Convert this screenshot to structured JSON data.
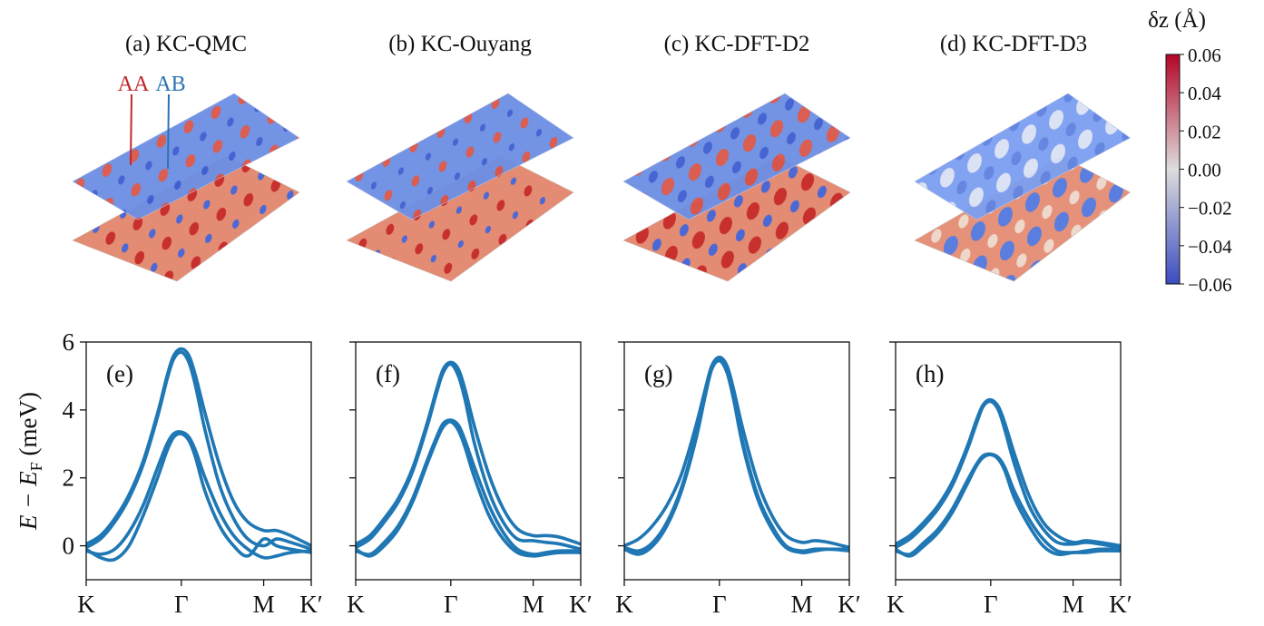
{
  "chart_data": [
    {
      "type": "surface",
      "title": "(a) KC-QMC",
      "annotations": [
        {
          "text": "AA",
          "color": "#c0282d"
        },
        {
          "text": "AB",
          "color": "#2b73b4"
        }
      ]
    },
    {
      "type": "surface",
      "title": "(b) KC-Ouyang"
    },
    {
      "type": "surface",
      "title": "(c) KC-DFT-D2"
    },
    {
      "type": "surface",
      "title": "(d) KC-DFT-D3"
    },
    {
      "type": "colorbar",
      "label": "δz (Å)",
      "lim": [
        -0.06,
        0.06
      ],
      "colors": [
        "#3b4cc0",
        "#dddddd",
        "#b40426"
      ],
      "ticks": [
        0.06,
        0.04,
        0.02,
        {
          "value": 0,
          "label": "0.00"
        },
        {
          "value": -0.02,
          "label": "−0.02"
        },
        {
          "value": -0.04,
          "label": "−0.04"
        },
        {
          "value": -0.06,
          "label": "−0.06"
        }
      ]
    },
    {
      "type": "line",
      "panel_label": "(e)",
      "ylabel": {
        "main": "E − E",
        "sub": "F",
        "unit": " (meV)"
      },
      "ytick_labels": true,
      "x": [
        0,
        0.15,
        0.3,
        0.45,
        0.6,
        0.75,
        0.85,
        0.92,
        1.0,
        1.08,
        1.15,
        1.25,
        1.4,
        1.55,
        1.7,
        1.866,
        2.0,
        2.15,
        2.366
      ],
      "xlim": [
        0,
        2.366
      ],
      "ylim": [
        -1,
        6
      ],
      "xticks": [
        {
          "value": 0,
          "label": "K"
        },
        {
          "value": 1,
          "label": "Γ"
        },
        {
          "value": 1.866,
          "label": "M"
        },
        {
          "value": 2.366,
          "label": "K′"
        }
      ],
      "yticks": [
        0,
        2,
        4,
        6
      ],
      "series": [
        {
          "color": "#1f77b4",
          "values": [
            0.05,
            0.3,
            0.8,
            1.5,
            2.5,
            3.9,
            5.0,
            5.6,
            5.8,
            5.6,
            5.0,
            3.9,
            2.4,
            1.3,
            0.7,
            0.45,
            0.45,
            0.3,
            0.0
          ]
        },
        {
          "color": "#1f77b4",
          "values": [
            -0.05,
            0.2,
            0.7,
            1.4,
            2.4,
            3.8,
            4.9,
            5.5,
            5.7,
            5.4,
            4.7,
            3.4,
            1.8,
            0.8,
            0.2,
            0.0,
            0.2,
            0.1,
            -0.1
          ]
        },
        {
          "color": "#1f77b4",
          "values": [
            -0.15,
            -0.25,
            -0.1,
            0.4,
            1.2,
            2.3,
            3.0,
            3.3,
            3.35,
            3.2,
            2.8,
            2.0,
            1.0,
            0.3,
            -0.1,
            -0.35,
            -0.3,
            -0.2,
            -0.15
          ]
        },
        {
          "color": "#1f77b4",
          "values": [
            -0.1,
            -0.35,
            -0.4,
            0.0,
            0.9,
            2.0,
            2.8,
            3.2,
            3.3,
            3.1,
            2.6,
            1.6,
            0.6,
            0.0,
            -0.3,
            0.2,
            0.0,
            -0.1,
            -0.2
          ]
        }
      ]
    },
    {
      "type": "line",
      "panel_label": "(f)",
      "ytick_labels": false,
      "x": [
        0,
        0.15,
        0.3,
        0.45,
        0.6,
        0.75,
        0.85,
        0.92,
        1.0,
        1.08,
        1.15,
        1.25,
        1.4,
        1.55,
        1.7,
        1.866,
        2.0,
        2.15,
        2.366
      ],
      "xlim": [
        0,
        2.366
      ],
      "ylim": [
        -1,
        6
      ],
      "xticks": [
        {
          "value": 0,
          "label": "K"
        },
        {
          "value": 1,
          "label": "Γ"
        },
        {
          "value": 1.866,
          "label": "M"
        },
        {
          "value": 2.366,
          "label": "K′"
        }
      ],
      "yticks": [
        0,
        2,
        4,
        6
      ],
      "series": [
        {
          "color": "#1f77b4",
          "values": [
            0.05,
            0.3,
            0.8,
            1.4,
            2.3,
            3.6,
            4.6,
            5.2,
            5.4,
            5.2,
            4.6,
            3.5,
            2.1,
            1.1,
            0.5,
            0.3,
            0.3,
            0.25,
            0.05
          ]
        },
        {
          "color": "#1f77b4",
          "values": [
            -0.05,
            0.2,
            0.7,
            1.3,
            2.2,
            3.5,
            4.5,
            5.1,
            5.35,
            5.0,
            4.3,
            3.0,
            1.6,
            0.7,
            0.2,
            0.15,
            0.1,
            0.05,
            -0.1
          ]
        },
        {
          "color": "#1f77b4",
          "values": [
            -0.15,
            -0.25,
            0.1,
            0.6,
            1.4,
            2.5,
            3.2,
            3.6,
            3.7,
            3.55,
            3.1,
            2.3,
            1.2,
            0.4,
            -0.1,
            -0.25,
            -0.2,
            -0.15,
            -0.15
          ]
        },
        {
          "color": "#1f77b4",
          "values": [
            -0.1,
            -0.3,
            0.0,
            0.5,
            1.3,
            2.4,
            3.1,
            3.5,
            3.65,
            3.4,
            2.9,
            2.0,
            0.9,
            0.2,
            -0.2,
            -0.3,
            -0.25,
            -0.2,
            -0.2
          ]
        }
      ]
    },
    {
      "type": "line",
      "panel_label": "(g)",
      "ytick_labels": false,
      "x": [
        0,
        0.15,
        0.3,
        0.45,
        0.6,
        0.75,
        0.85,
        0.92,
        1.0,
        1.08,
        1.15,
        1.25,
        1.4,
        1.55,
        1.7,
        1.866,
        2.0,
        2.15,
        2.366
      ],
      "xlim": [
        0,
        2.366
      ],
      "ylim": [
        -1,
        6
      ],
      "xticks": [
        {
          "value": 0,
          "label": "K"
        },
        {
          "value": 1,
          "label": "Γ"
        },
        {
          "value": 1.866,
          "label": "M"
        },
        {
          "value": 2.366,
          "label": "K′"
        }
      ],
      "yticks": [
        0,
        2,
        4,
        6
      ],
      "series": [
        {
          "color": "#1f77b4",
          "values": [
            0.0,
            0.2,
            0.6,
            1.2,
            2.1,
            3.5,
            4.6,
            5.3,
            5.55,
            5.3,
            4.6,
            3.4,
            1.9,
            0.9,
            0.3,
            0.1,
            0.15,
            0.1,
            -0.05
          ]
        },
        {
          "color": "#1f77b4",
          "values": [
            -0.05,
            -0.15,
            0.1,
            0.7,
            1.7,
            3.2,
            4.5,
            5.25,
            5.5,
            5.2,
            4.4,
            3.0,
            1.5,
            0.6,
            0.0,
            -0.15,
            -0.1,
            -0.1,
            -0.1
          ]
        },
        {
          "color": "#1f77b4",
          "values": [
            -0.1,
            -0.25,
            0.0,
            0.6,
            1.6,
            3.1,
            4.4,
            5.2,
            5.45,
            5.1,
            4.3,
            2.9,
            1.4,
            0.5,
            -0.05,
            -0.2,
            -0.15,
            -0.1,
            -0.15
          ]
        }
      ]
    },
    {
      "type": "line",
      "panel_label": "(h)",
      "ytick_labels": false,
      "x": [
        0,
        0.15,
        0.3,
        0.45,
        0.6,
        0.75,
        0.85,
        0.92,
        1.0,
        1.08,
        1.15,
        1.25,
        1.4,
        1.55,
        1.7,
        1.866,
        2.0,
        2.15,
        2.366
      ],
      "xlim": [
        0,
        2.366
      ],
      "ylim": [
        -1,
        6
      ],
      "xticks": [
        {
          "value": 0,
          "label": "K"
        },
        {
          "value": 1,
          "label": "Γ"
        },
        {
          "value": 1.866,
          "label": "M"
        },
        {
          "value": 2.366,
          "label": "K′"
        }
      ],
      "yticks": [
        0,
        2,
        4,
        6
      ],
      "series": [
        {
          "color": "#1f77b4",
          "values": [
            0.05,
            0.3,
            0.7,
            1.2,
            1.9,
            2.9,
            3.7,
            4.15,
            4.3,
            4.1,
            3.6,
            2.7,
            1.5,
            0.7,
            0.3,
            0.1,
            0.15,
            0.1,
            0.0
          ]
        },
        {
          "color": "#1f77b4",
          "values": [
            -0.05,
            0.2,
            0.6,
            1.1,
            1.8,
            2.8,
            3.6,
            4.1,
            4.25,
            4.0,
            3.4,
            2.4,
            1.2,
            0.5,
            0.1,
            0.05,
            0.1,
            0.05,
            -0.05
          ]
        },
        {
          "color": "#1f77b4",
          "values": [
            -0.15,
            -0.25,
            0.1,
            0.5,
            1.1,
            1.9,
            2.4,
            2.65,
            2.7,
            2.6,
            2.3,
            1.6,
            0.8,
            0.2,
            -0.15,
            -0.2,
            -0.15,
            -0.1,
            -0.1
          ]
        },
        {
          "color": "#1f77b4",
          "values": [
            -0.1,
            -0.3,
            0.0,
            0.4,
            1.0,
            1.8,
            2.35,
            2.6,
            2.68,
            2.55,
            2.2,
            1.4,
            0.6,
            0.0,
            -0.25,
            -0.2,
            -0.2,
            -0.15,
            -0.15
          ]
        }
      ]
    }
  ]
}
